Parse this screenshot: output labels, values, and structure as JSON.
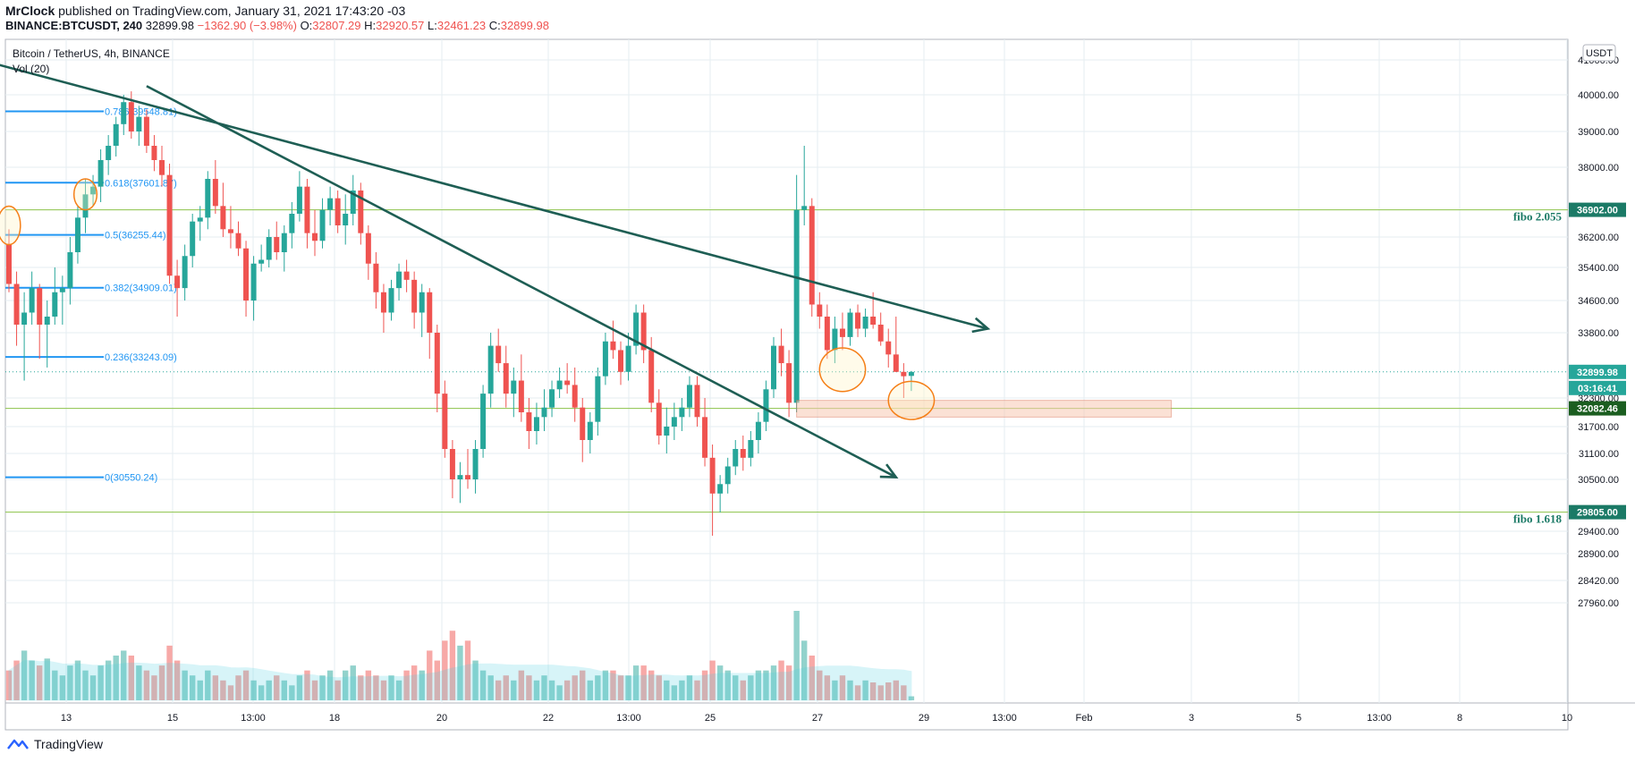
{
  "header": {
    "author": "MrClock",
    "published_text": "published on TradingView.com, January 31, 2021 17:43:20 -03",
    "symbol": "BINANCE:BTCUSDT, 240",
    "last": "32899.98",
    "change": "−1362.90 (−3.98%)",
    "o_label": "O:",
    "o": "32807.29",
    "h_label": "H:",
    "h": "32920.57",
    "l_label": "L:",
    "l": "32461.23",
    "c_label": "C:",
    "c": "32899.98"
  },
  "pane": {
    "title": "Bitcoin / TetherUS, 4h, BINANCE",
    "vol_label": "Vol (20)",
    "currency": "USDT"
  },
  "footer": {
    "brand": "TradingView",
    "logo_icon": "tradingview-logo-icon"
  },
  "colors": {
    "up": "#26a69a",
    "down": "#ef5350",
    "trend": "#1e5e54",
    "fib": "#2196f3",
    "hline": "#8bc34a",
    "grid": "#e6eef2",
    "highlight": "#f57f17"
  },
  "chart_data": {
    "type": "candlestick",
    "timeframe": "4h",
    "y_ticks": [
      41000,
      40000,
      39000,
      38000,
      36200,
      35400,
      34600,
      33800,
      32300,
      31700,
      31100,
      30500,
      29400,
      28900,
      28420,
      27960
    ],
    "x_ticks": [
      "13",
      "15",
      "13:00",
      "18",
      "20",
      "22",
      "13:00",
      "25",
      "27",
      "29",
      "13:00",
      "Feb",
      "3",
      "5",
      "13:00",
      "8",
      "10"
    ],
    "price_badges": [
      {
        "label": "36902.00",
        "value": 36902,
        "kind": "level"
      },
      {
        "label": "32899.98",
        "value": 32899.98,
        "kind": "last"
      },
      {
        "label": "03:16:41",
        "value": 32899.98,
        "kind": "countdown"
      },
      {
        "label": "32082.46",
        "value": 32082.46,
        "kind": "level"
      },
      {
        "label": "29805.00",
        "value": 29805,
        "kind": "level"
      }
    ],
    "horizontal_levels": [
      {
        "label": "fibo 2.055",
        "value": 36902
      },
      {
        "label": "32082.46",
        "value": 32082.46
      },
      {
        "label": "fibo 1.618",
        "value": 29805
      }
    ],
    "fib_levels": [
      {
        "label": "0.786(39548.81)",
        "value": 39548.81
      },
      {
        "label": "0.618(37601.87)",
        "value": 37601.87
      },
      {
        "label": "0.5(36255.44)",
        "value": 36255.44
      },
      {
        "label": "0.382(34909.01)",
        "value": 34909.01
      },
      {
        "label": "0.236(33243.09)",
        "value": 33243.09
      },
      {
        "label": "0(30550.24)",
        "value": 30550.24
      }
    ],
    "candles": [
      [
        36000,
        36400,
        34800,
        35000,
        30
      ],
      [
        35000,
        35300,
        33500,
        34000,
        40
      ],
      [
        34000,
        34800,
        32700,
        34300,
        50
      ],
      [
        34300,
        35300,
        34000,
        34900,
        40
      ],
      [
        34900,
        35000,
        33200,
        34000,
        35
      ],
      [
        34000,
        34600,
        33000,
        34200,
        42
      ],
      [
        34200,
        35400,
        34000,
        34800,
        30
      ],
      [
        34800,
        35200,
        34000,
        34900,
        25
      ],
      [
        34900,
        36200,
        34500,
        35800,
        35
      ],
      [
        35800,
        37000,
        35500,
        36700,
        40
      ],
      [
        36700,
        37700,
        36300,
        37300,
        30
      ],
      [
        37300,
        37800,
        37000,
        37500,
        25
      ],
      [
        37500,
        38500,
        37100,
        38200,
        35
      ],
      [
        38200,
        38900,
        37800,
        38600,
        40
      ],
      [
        38600,
        39400,
        38300,
        39200,
        45
      ],
      [
        39200,
        40000,
        38900,
        39800,
        50
      ],
      [
        39800,
        40100,
        38800,
        39000,
        45
      ],
      [
        39000,
        39700,
        38600,
        39400,
        35
      ],
      [
        39400,
        39600,
        38400,
        38600,
        30
      ],
      [
        38600,
        38900,
        37900,
        38200,
        25
      ],
      [
        38200,
        38600,
        37500,
        37800,
        35
      ],
      [
        37800,
        38100,
        35000,
        35200,
        55
      ],
      [
        35200,
        35600,
        34200,
        34900,
        40
      ],
      [
        34900,
        36000,
        34600,
        35700,
        30
      ],
      [
        35700,
        36800,
        35400,
        36600,
        25
      ],
      [
        36600,
        37000,
        36100,
        36700,
        20
      ],
      [
        36700,
        37900,
        36400,
        37700,
        30
      ],
      [
        37700,
        38200,
        36800,
        37000,
        25
      ],
      [
        37000,
        37600,
        36200,
        36400,
        20
      ],
      [
        36400,
        37000,
        35900,
        36300,
        15
      ],
      [
        36300,
        36600,
        35700,
        35900,
        25
      ],
      [
        35900,
        36100,
        34200,
        34600,
        30
      ],
      [
        34600,
        35700,
        34100,
        35500,
        20
      ],
      [
        35500,
        36000,
        35300,
        35600,
        15
      ],
      [
        35600,
        36400,
        35400,
        36200,
        20
      ],
      [
        36200,
        36600,
        35600,
        35800,
        25
      ],
      [
        35800,
        36500,
        35300,
        36300,
        20
      ],
      [
        36300,
        37100,
        35900,
        36800,
        15
      ],
      [
        36800,
        37900,
        36600,
        37500,
        25
      ],
      [
        37500,
        37700,
        35900,
        36300,
        30
      ],
      [
        36300,
        36900,
        35700,
        36100,
        20
      ],
      [
        36100,
        37200,
        35900,
        36900,
        25
      ],
      [
        36900,
        37500,
        36500,
        37200,
        30
      ],
      [
        37200,
        37400,
        36300,
        36500,
        20
      ],
      [
        36500,
        37300,
        36000,
        36800,
        30
      ],
      [
        36800,
        37800,
        36500,
        37400,
        35
      ],
      [
        37400,
        37600,
        36000,
        36300,
        25
      ],
      [
        36300,
        36500,
        35100,
        35500,
        30
      ],
      [
        35500,
        35800,
        34400,
        34800,
        25
      ],
      [
        34800,
        35000,
        33800,
        34300,
        20
      ],
      [
        34300,
        35100,
        34100,
        34900,
        25
      ],
      [
        34900,
        35500,
        34600,
        35300,
        20
      ],
      [
        35300,
        35600,
        34800,
        35100,
        30
      ],
      [
        35100,
        35300,
        33900,
        34300,
        35
      ],
      [
        34300,
        35000,
        33700,
        34800,
        30
      ],
      [
        34800,
        34900,
        33200,
        33800,
        50
      ],
      [
        33800,
        34000,
        32000,
        32400,
        40
      ],
      [
        32400,
        32700,
        31000,
        31200,
        60
      ],
      [
        31200,
        31400,
        30100,
        30500,
        70
      ],
      [
        30500,
        30900,
        30000,
        30600,
        55
      ],
      [
        30600,
        31200,
        30300,
        30500,
        60
      ],
      [
        30500,
        31400,
        30200,
        31200,
        40
      ],
      [
        31200,
        32600,
        31000,
        32400,
        30
      ],
      [
        32400,
        33800,
        32100,
        33500,
        25
      ],
      [
        33500,
        33900,
        32900,
        33100,
        20
      ],
      [
        33100,
        33500,
        32100,
        32400,
        25
      ],
      [
        32400,
        33000,
        31900,
        32700,
        20
      ],
      [
        32700,
        33300,
        31800,
        32000,
        30
      ],
      [
        32000,
        32300,
        31200,
        31600,
        25
      ],
      [
        31600,
        32200,
        31300,
        31900,
        20
      ],
      [
        31900,
        32500,
        31600,
        32100,
        25
      ],
      [
        32100,
        32700,
        31900,
        32500,
        20
      ],
      [
        32500,
        33000,
        32300,
        32700,
        15
      ],
      [
        32700,
        33100,
        32400,
        32600,
        20
      ],
      [
        32600,
        33000,
        31800,
        32100,
        25
      ],
      [
        32100,
        32300,
        30900,
        31400,
        30
      ],
      [
        31400,
        32000,
        31100,
        31800,
        20
      ],
      [
        31800,
        33000,
        31500,
        32800,
        25
      ],
      [
        32800,
        33800,
        32600,
        33600,
        30
      ],
      [
        33600,
        34100,
        33200,
        33400,
        30
      ],
      [
        33400,
        33600,
        32600,
        32900,
        25
      ],
      [
        32900,
        33800,
        32700,
        33500,
        25
      ],
      [
        33500,
        34500,
        33300,
        34300,
        35
      ],
      [
        34300,
        34500,
        33100,
        33400,
        35
      ],
      [
        33400,
        33700,
        32000,
        32200,
        30
      ],
      [
        32200,
        32500,
        31300,
        31500,
        25
      ],
      [
        31500,
        32100,
        31100,
        31700,
        20
      ],
      [
        31700,
        32200,
        31400,
        31900,
        15
      ],
      [
        31900,
        32300,
        31600,
        32100,
        20
      ],
      [
        32100,
        32800,
        31900,
        32600,
        25
      ],
      [
        32600,
        32800,
        31700,
        31900,
        20
      ],
      [
        31900,
        32300,
        30800,
        31000,
        30
      ],
      [
        31000,
        31300,
        29300,
        30200,
        40
      ],
      [
        30200,
        30600,
        29800,
        30400,
        35
      ],
      [
        30400,
        31000,
        30200,
        30800,
        30
      ],
      [
        30800,
        31400,
        30600,
        31200,
        25
      ],
      [
        31200,
        31500,
        30700,
        31000,
        20
      ],
      [
        31000,
        31600,
        30800,
        31400,
        25
      ],
      [
        31400,
        32000,
        31100,
        31800,
        30
      ],
      [
        31800,
        32700,
        31600,
        32500,
        30
      ],
      [
        32500,
        33700,
        32300,
        33500,
        35
      ],
      [
        33500,
        33900,
        32800,
        33100,
        40
      ],
      [
        33100,
        33400,
        31900,
        32200,
        35
      ],
      [
        32200,
        37800,
        32000,
        36900,
        90
      ],
      [
        36900,
        38600,
        36500,
        37000,
        60
      ],
      [
        37000,
        37200,
        34200,
        34500,
        45
      ],
      [
        34500,
        34800,
        33900,
        34200,
        30
      ],
      [
        34200,
        34500,
        33200,
        33400,
        25
      ],
      [
        33400,
        34200,
        33100,
        33900,
        20
      ],
      [
        33900,
        34300,
        33400,
        33700,
        25
      ],
      [
        33700,
        34400,
        33500,
        34300,
        20
      ],
      [
        34300,
        34500,
        33700,
        33900,
        15
      ],
      [
        33900,
        34400,
        33700,
        34200,
        20
      ],
      [
        34200,
        34800,
        33900,
        34000,
        18
      ],
      [
        34000,
        34300,
        33500,
        33600,
        15
      ],
      [
        33600,
        33900,
        33000,
        33300,
        18
      ],
      [
        33300,
        34200,
        32900,
        32900,
        20
      ],
      [
        32900,
        33100,
        32300,
        32800,
        15
      ],
      [
        32807.29,
        32920.57,
        32461.23,
        32899.98,
        4
      ]
    ],
    "annotations": [
      {
        "type": "trendline",
        "from": {
          "bar": -2,
          "price": 40900
        },
        "to": {
          "bar": 128,
          "price": 33900
        },
        "arrow": true
      },
      {
        "type": "trendline",
        "from": {
          "bar": 18,
          "price": 40250
        },
        "to": {
          "bar": 116,
          "price": 30550
        },
        "arrow": true
      },
      {
        "type": "rectangle",
        "from": {
          "bar": 103,
          "price": 32250
        },
        "to": {
          "bar": 152,
          "price": 31900
        }
      },
      {
        "type": "ellipse",
        "center": {
          "bar": 109,
          "price": 32950
        },
        "rx_bars": 3,
        "ry_price": 500
      },
      {
        "type": "ellipse",
        "center": {
          "bar": 118,
          "price": 32250
        },
        "rx_bars": 3,
        "ry_price": 400
      },
      {
        "type": "ellipse",
        "center": {
          "bar": 10,
          "price": 37300
        },
        "rx_bars": 1.5,
        "ry_price": 400
      },
      {
        "type": "ellipse",
        "center": {
          "bar": 0,
          "price": 36500
        },
        "rx_bars": 1.5,
        "ry_price": 500
      }
    ]
  }
}
